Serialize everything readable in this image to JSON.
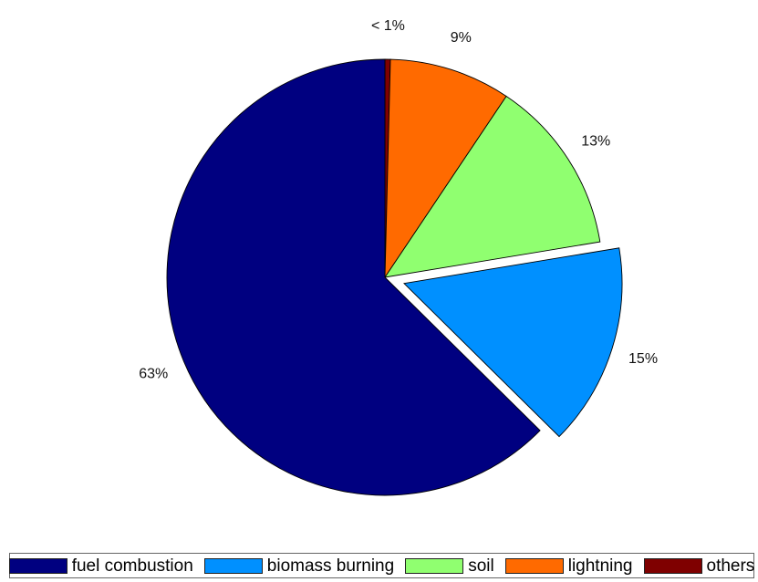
{
  "chart_data": {
    "type": "pie",
    "title": "",
    "start": "12 o'clock",
    "direction": "clockwise",
    "exploded": [
      "biomass burning"
    ],
    "legend_position": "bottom",
    "slices": [
      {
        "name": "others",
        "value": 0.4,
        "label": "< 1%",
        "color": "#7f0000"
      },
      {
        "name": "lightning",
        "value": 9,
        "label": "9%",
        "color": "#ff6a00"
      },
      {
        "name": "soil",
        "value": 13,
        "label": "13%",
        "color": "#90ff70"
      },
      {
        "name": "biomass burning",
        "value": 15,
        "label": "15%",
        "color": "#0090ff"
      },
      {
        "name": "fuel combustion",
        "value": 62.6,
        "label": "63%",
        "color": "#000080"
      }
    ],
    "legend": [
      {
        "name": "fuel combustion",
        "color": "#000080"
      },
      {
        "name": "biomass burning",
        "color": "#0090ff"
      },
      {
        "name": "soil",
        "color": "#90ff70"
      },
      {
        "name": "lightning",
        "color": "#ff6a00"
      },
      {
        "name": "others",
        "color": "#7f0000"
      }
    ]
  }
}
